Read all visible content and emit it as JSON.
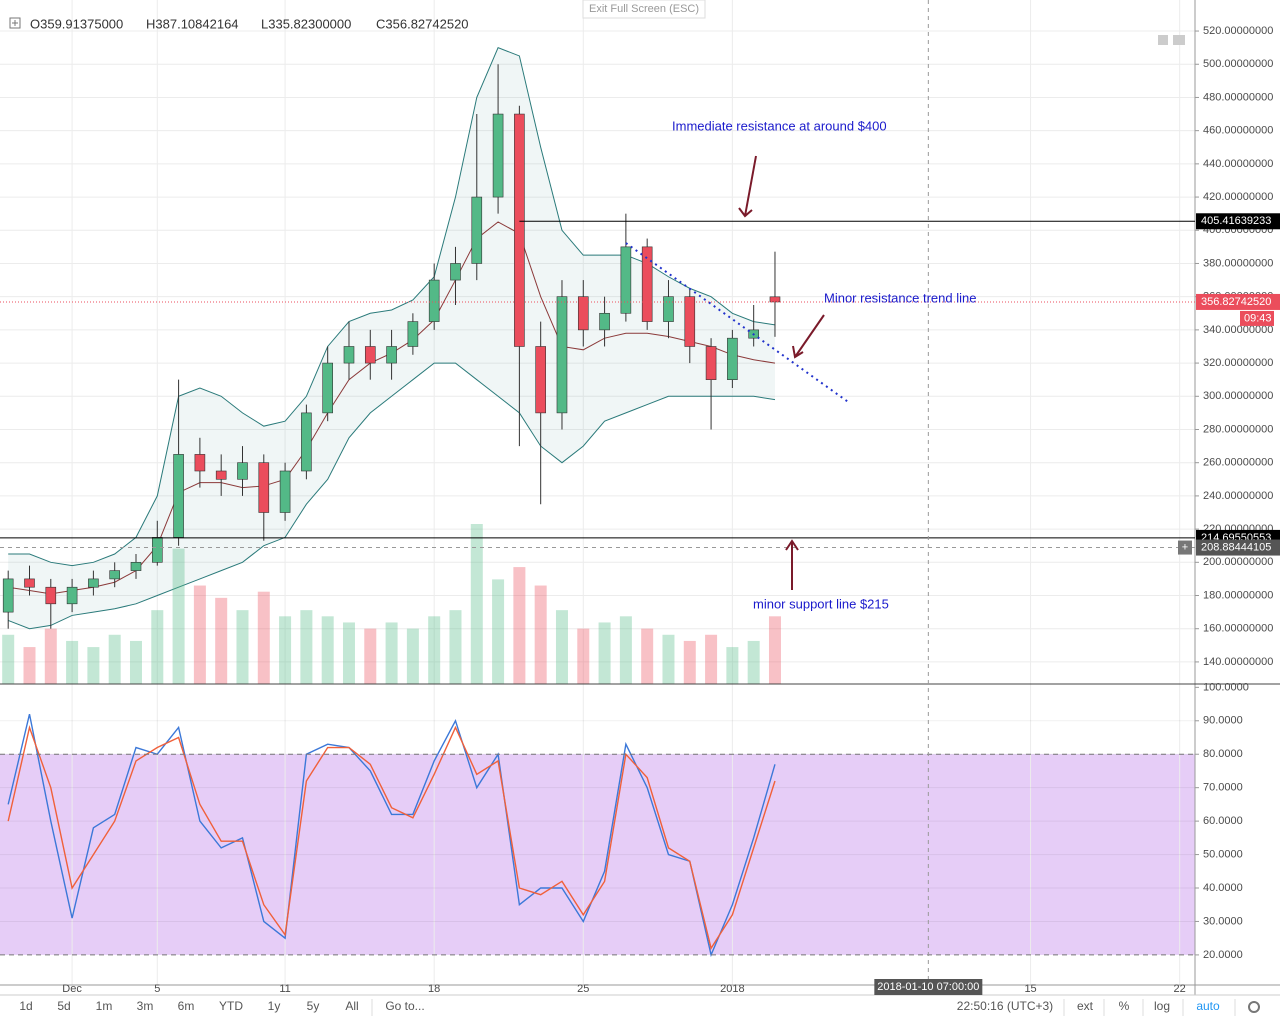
{
  "header": {
    "open": "O359.91375000",
    "high": "H387.10842164",
    "low": "L335.82300000",
    "close": "C356.82742520"
  },
  "exit_fullscreen": "Exit Full Screen (ESC)",
  "annotations": [
    "Immediate resistance at around $400",
    "Minor resistance trend line",
    "minor support  line $215"
  ],
  "crosshair": {
    "x": 40.2,
    "label": "2018-01-10 07:00:00"
  },
  "toolbar": {
    "ranges": [
      "1d",
      "5d",
      "1m",
      "3m",
      "6m",
      "YTD",
      "1y",
      "5y",
      "All"
    ],
    "goto": "Go to...",
    "clock": "22:50:16 (UTC+3)",
    "options": [
      "ext",
      "%",
      "log",
      "auto"
    ]
  },
  "chart_data": [
    {
      "type": "candlestick",
      "x": [
        -3,
        -2,
        -1,
        0,
        1,
        2,
        3,
        4,
        5,
        6,
        7,
        8,
        9,
        10,
        11,
        12,
        13,
        14,
        15,
        16,
        17,
        18,
        19,
        20,
        21,
        22,
        23,
        24,
        25,
        26,
        27,
        28,
        29,
        30,
        31,
        32,
        33
      ],
      "open": [
        170,
        190,
        185,
        175,
        185,
        190,
        195,
        200,
        215,
        265,
        255,
        250,
        260,
        230,
        255,
        290,
        320,
        330,
        320,
        330,
        345,
        370,
        380,
        420,
        470,
        330,
        290,
        360,
        340,
        350,
        390,
        345,
        360,
        330,
        310,
        335,
        359.91375
      ],
      "high": [
        195,
        198,
        190,
        190,
        195,
        200,
        205,
        225,
        310,
        275,
        265,
        270,
        265,
        260,
        295,
        330,
        345,
        340,
        340,
        350,
        380,
        390,
        470,
        500,
        475,
        345,
        370,
        370,
        360,
        410,
        395,
        370,
        365,
        335,
        340,
        355,
        387.10842164
      ],
      "low": [
        160,
        180,
        160,
        170,
        180,
        185,
        190,
        198,
        210,
        245,
        240,
        240,
        213,
        225,
        250,
        285,
        310,
        310,
        310,
        325,
        340,
        355,
        370,
        410,
        270,
        235,
        280,
        330,
        330,
        345,
        340,
        335,
        320,
        280,
        305,
        330,
        335.823
      ],
      "close": [
        190,
        185,
        175,
        185,
        190,
        195,
        200,
        215,
        265,
        255,
        250,
        260,
        230,
        255,
        290,
        320,
        330,
        320,
        330,
        345,
        370,
        380,
        420,
        470,
        330,
        290,
        360,
        340,
        350,
        390,
        345,
        360,
        330,
        310,
        335,
        340,
        356.8274252
      ],
      "up_color": "#53b987",
      "down_color": "#eb4d5c",
      "bands": {
        "color": "#2a7a7a",
        "middle_color": "#8b3a3a",
        "upper": [
          205,
          205,
          200,
          198,
          200,
          205,
          215,
          240,
          300,
          305,
          300,
          290,
          282,
          285,
          300,
          330,
          345,
          350,
          352,
          358,
          372,
          420,
          480,
          510,
          505,
          450,
          400,
          385,
          385,
          385,
          380,
          372,
          365,
          360,
          350,
          345,
          343
        ],
        "middle": [
          185,
          183,
          181,
          183,
          185,
          188,
          195,
          210,
          242,
          248,
          248,
          245,
          246,
          250,
          268,
          290,
          310,
          320,
          326,
          334,
          346,
          370,
          395,
          405,
          398,
          360,
          330,
          328,
          335,
          338,
          338,
          336,
          333,
          330,
          325,
          322,
          320
        ],
        "lower": [
          165,
          160,
          162,
          168,
          170,
          172,
          175,
          180,
          185,
          190,
          195,
          200,
          210,
          215,
          235,
          250,
          275,
          290,
          300,
          310,
          320,
          320,
          310,
          300,
          290,
          270,
          260,
          270,
          285,
          290,
          295,
          300,
          300,
          300,
          300,
          300,
          298
        ]
      },
      "volume": [
        40,
        30,
        45,
        35,
        30,
        40,
        35,
        60,
        110,
        80,
        70,
        60,
        75,
        55,
        60,
        55,
        50,
        45,
        50,
        45,
        55,
        60,
        130,
        85,
        95,
        80,
        60,
        45,
        50,
        55,
        45,
        40,
        35,
        40,
        30,
        35,
        55
      ],
      "xlim": [
        -3.15,
        52.72
      ],
      "xticks": [
        {
          "value": 0,
          "label": "Dec"
        },
        {
          "value": 4,
          "label": "5"
        },
        {
          "value": 10,
          "label": "11"
        },
        {
          "value": 17,
          "label": "18"
        },
        {
          "value": 24,
          "label": "25"
        },
        {
          "value": 31,
          "label": "2018"
        },
        {
          "value": 45,
          "label": "15"
        },
        {
          "value": 52,
          "label": "22"
        }
      ],
      "ylim": [
        126.7,
        538.7
      ],
      "yticks": [
        {
          "value": 140,
          "label": "140.00000000"
        },
        {
          "value": 160,
          "label": "160.00000000"
        },
        {
          "value": 180,
          "label": "180.00000000"
        },
        {
          "value": 200,
          "label": "200.00000000"
        },
        {
          "value": 220,
          "label": "220.00000000"
        },
        {
          "value": 240,
          "label": "240.00000000"
        },
        {
          "value": 260,
          "label": "260.00000000"
        },
        {
          "value": 280,
          "label": "280.00000000"
        },
        {
          "value": 300,
          "label": "300.00000000"
        },
        {
          "value": 320,
          "label": "320.00000000"
        },
        {
          "value": 340,
          "label": "340.00000000"
        },
        {
          "value": 360,
          "label": "360.00000000"
        },
        {
          "value": 380,
          "label": "380.00000000"
        },
        {
          "value": 400,
          "label": "400.00000000"
        },
        {
          "value": 420,
          "label": "420.00000000"
        },
        {
          "value": 440,
          "label": "440.00000000"
        },
        {
          "value": 460,
          "label": "460.00000000"
        },
        {
          "value": 480,
          "label": "480.00000000"
        },
        {
          "value": 500,
          "label": "500.00000000"
        },
        {
          "value": 520,
          "label": "520.00000000"
        }
      ],
      "hlines": [
        {
          "value": 405.41639233,
          "label": "405.41639233"
        },
        {
          "value": 214.69550553,
          "label": "214.69550553"
        }
      ],
      "cursor_price": {
        "value": 208.88444105,
        "label": "208.88444105"
      },
      "last_price": {
        "value": 356.8274252,
        "label": "356.82742520"
      },
      "countdown": "09:43",
      "trend_line": {
        "x": [
          26,
          36.5
        ],
        "y": [
          392.3,
          296
        ],
        "color": "#2233cc"
      }
    },
    {
      "type": "line",
      "x": [
        -3,
        -2,
        -1,
        0,
        1,
        2,
        3,
        4,
        5,
        6,
        7,
        8,
        9,
        10,
        11,
        12,
        13,
        14,
        15,
        16,
        17,
        18,
        19,
        20,
        21,
        22,
        23,
        24,
        25,
        26,
        27,
        28,
        29,
        30,
        31,
        32,
        33
      ],
      "series": [
        {
          "color": "#3c78d8",
          "values": [
            65,
            92,
            60,
            31,
            58,
            62,
            82,
            80,
            88,
            60,
            52,
            55,
            30,
            25,
            80,
            83,
            82,
            75,
            62,
            62,
            78,
            90,
            70,
            80,
            35,
            40,
            40,
            30,
            45,
            83,
            70,
            50,
            48,
            20,
            35,
            55,
            77
          ]
        },
        {
          "color": "#f0603a",
          "values": [
            60,
            88,
            70,
            40,
            50,
            60,
            78,
            82,
            85,
            65,
            54,
            54,
            35,
            26,
            72,
            82,
            82,
            77,
            64,
            61,
            74,
            88,
            74,
            78,
            40,
            38,
            42,
            32,
            42,
            80,
            73,
            52,
            48,
            22,
            32,
            52,
            72
          ]
        }
      ],
      "band": [
        20,
        80
      ],
      "band_color": "#e6cdf7",
      "ylim": [
        11,
        101
      ],
      "yticks": [
        {
          "value": 20,
          "label": "20.0000"
        },
        {
          "value": 30,
          "label": "30.0000"
        },
        {
          "value": 40,
          "label": "40.0000"
        },
        {
          "value": 50,
          "label": "50.0000"
        },
        {
          "value": 60,
          "label": "60.0000"
        },
        {
          "value": 70,
          "label": "70.0000"
        },
        {
          "value": 80,
          "label": "80.0000"
        },
        {
          "value": 90,
          "label": "90.0000"
        },
        {
          "value": 100,
          "label": "100.0000"
        }
      ]
    }
  ]
}
